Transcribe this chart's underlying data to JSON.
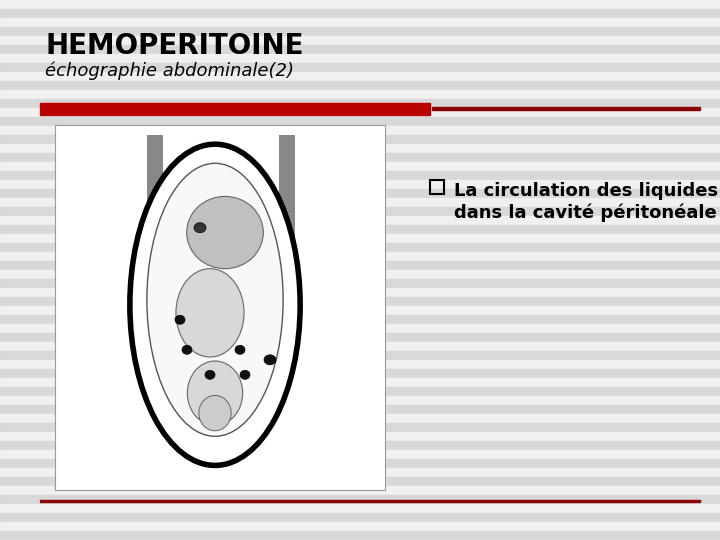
{
  "title": "HEMOPERITOINE",
  "subtitle": "échographie abdominale(2)",
  "bullet_text_line1": "La circulation des liquides",
  "bullet_text_line2": "dans la cavité péritonéale",
  "background_color": "#d8d8d8",
  "stripe_color": "#f0f0f0",
  "title_color": "#000000",
  "subtitle_color": "#000000",
  "divider_color_left": "#bb0000",
  "divider_color_right": "#880000",
  "title_fontsize": 20,
  "subtitle_fontsize": 13,
  "bullet_fontsize": 13
}
